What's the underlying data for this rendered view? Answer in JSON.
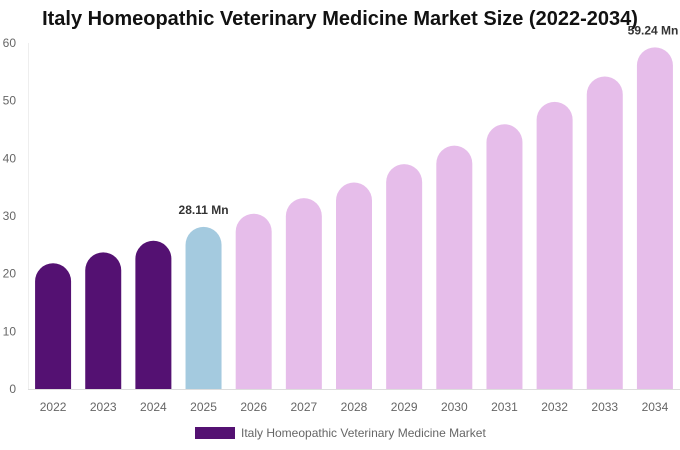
{
  "chart_data": {
    "type": "bar",
    "title": "Italy Homeopathic Veterinary Medicine Market Size (2022-2034)",
    "xlabel": "",
    "ylabel": "",
    "categories": [
      "2022",
      "2023",
      "2024",
      "2025",
      "2026",
      "2027",
      "2028",
      "2029",
      "2030",
      "2031",
      "2032",
      "2033",
      "2034"
    ],
    "series": [
      {
        "name": "Italy Homeopathic Veterinary Medicine Market",
        "values": [
          21.8,
          23.7,
          25.7,
          28.11,
          30.4,
          33.1,
          35.8,
          39.0,
          42.2,
          45.9,
          49.8,
          54.2,
          59.24
        ]
      }
    ],
    "ylim": [
      0,
      60
    ],
    "yticks": [
      0,
      10,
      20,
      30,
      40,
      50,
      60
    ],
    "data_labels": [
      {
        "index": 3,
        "text": "28.11 Mn"
      },
      {
        "index": 12,
        "text": "59.24 Mn"
      }
    ],
    "bar_colors": [
      "#541172",
      "#541172",
      "#541172",
      "#a4cadf",
      "#e6bdea",
      "#e6bdea",
      "#e6bdea",
      "#e6bdea",
      "#e6bdea",
      "#e6bdea",
      "#e6bdea",
      "#e6bdea",
      "#e6bdea"
    ],
    "legend": {
      "position": "bottom",
      "color": "#541172"
    },
    "grid": false
  }
}
